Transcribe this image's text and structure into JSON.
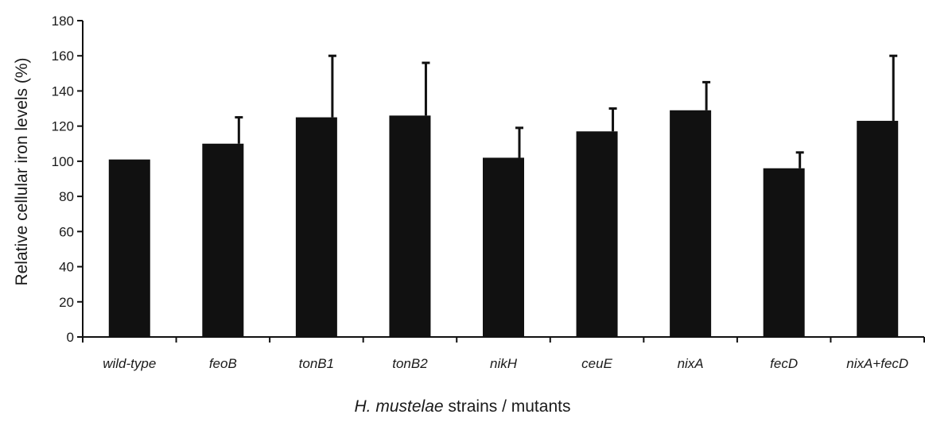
{
  "chart_data": {
    "type": "bar",
    "categories": [
      "wild-type",
      "feoB",
      "tonB1",
      "tonB2",
      "nikH",
      "ceuE",
      "nixA",
      "fecD",
      "nixA+fecD"
    ],
    "values": [
      101,
      110,
      125,
      126,
      102,
      117,
      129,
      96,
      123
    ],
    "errors": [
      0,
      15,
      35,
      30,
      17,
      13,
      16,
      9,
      37
    ],
    "ylabel": "Relative cellular iron levels (%)",
    "xlabel_italic": "H. mustelae",
    "xlabel_rest": "strains / mutants",
    "ylim": [
      0,
      180
    ],
    "yticks": [
      "0",
      "20",
      "40",
      "60",
      "80",
      "100",
      "120",
      "140",
      "160",
      "180"
    ],
    "grid": false,
    "bar_color": "#111111"
  }
}
